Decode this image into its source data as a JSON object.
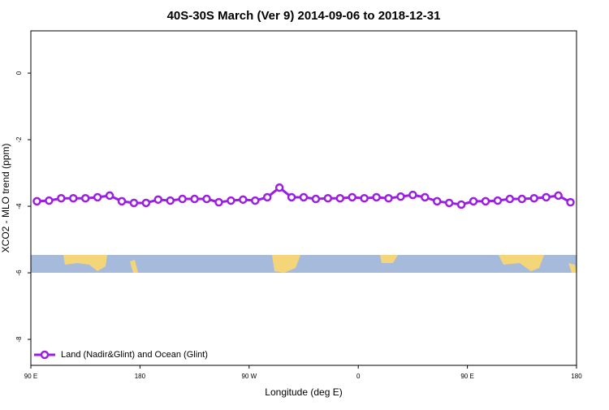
{
  "chart_data": {
    "type": "line",
    "title": "40S-30S March (Ver 9)   2014-09-06 to 2018-12-31",
    "x_label": "Longitude (deg E)",
    "y_label": "XCO2 - MLO trend (ppm)",
    "x": [
      95,
      105,
      115,
      125,
      135,
      145,
      155,
      165,
      175,
      185,
      195,
      205,
      215,
      225,
      235,
      245,
      255,
      265,
      275,
      285,
      295,
      305,
      315,
      325,
      335,
      345,
      355,
      365,
      375,
      385,
      395,
      405,
      415,
      425,
      435,
      445,
      455,
      465,
      475,
      485,
      495,
      505,
      515,
      525,
      535
    ],
    "series": [
      {
        "name": "Land (Nadir&Glint) and Ocean (Glint)",
        "color": "#9b1fe0",
        "values": [
          -3.85,
          -3.83,
          -3.76,
          -3.76,
          -3.76,
          -3.73,
          -3.68,
          -3.85,
          -3.9,
          -3.9,
          -3.8,
          -3.83,
          -3.78,
          -3.78,
          -3.78,
          -3.88,
          -3.83,
          -3.8,
          -3.83,
          -3.73,
          -3.44,
          -3.73,
          -3.73,
          -3.78,
          -3.76,
          -3.76,
          -3.73,
          -3.76,
          -3.73,
          -3.76,
          -3.71,
          -3.66,
          -3.73,
          -3.85,
          -3.9,
          -3.95,
          -3.85,
          -3.85,
          -3.83,
          -3.78,
          -3.78,
          -3.76,
          -3.73,
          -3.68,
          -3.88
        ]
      }
    ],
    "xlim": [
      90,
      540
    ],
    "xticks": [
      {
        "value": 90,
        "label": "90 E"
      },
      180,
      {
        "value": 270,
        "label": "90 W"
      },
      {
        "value": 360,
        "label": "0"
      },
      {
        "value": 450,
        "label": "90 E"
      },
      {
        "value": 540,
        "label": "180"
      }
    ],
    "ylim": [
      -8.78,
      1.27
    ],
    "yticks": [
      0,
      -2,
      -4,
      -6,
      -8
    ],
    "legend": "bottom-left"
  }
}
